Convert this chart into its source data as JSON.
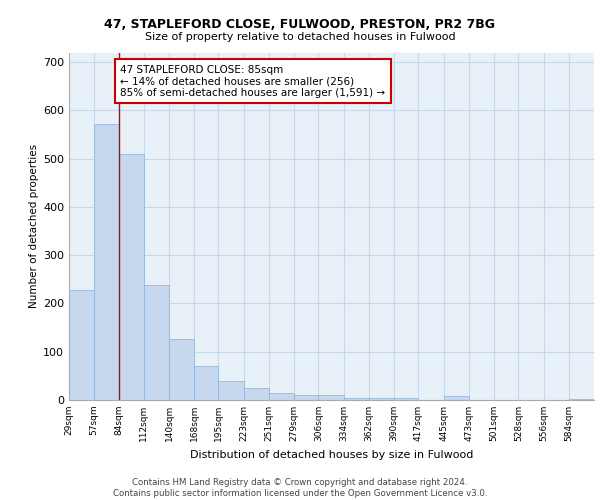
{
  "title1": "47, STAPLEFORD CLOSE, FULWOOD, PRESTON, PR2 7BG",
  "title2": "Size of property relative to detached houses in Fulwood",
  "xlabel": "Distribution of detached houses by size in Fulwood",
  "ylabel": "Number of detached properties",
  "footnote": "Contains HM Land Registry data © Crown copyright and database right 2024.\nContains public sector information licensed under the Open Government Licence v3.0.",
  "bar_color": "#c5d8ee",
  "bar_edge_color": "#8ab0d4",
  "grid_color": "#c8d8e8",
  "background_color": "#e8f0f8",
  "annotation_text": "47 STAPLEFORD CLOSE: 85sqm\n← 14% of detached houses are smaller (256)\n85% of semi-detached houses are larger (1,591) →",
  "annotation_box_color": "#ffffff",
  "annotation_box_edge": "#cc0000",
  "vline_color": "#cc0000",
  "ylim": [
    0,
    720
  ],
  "yticks": [
    0,
    100,
    200,
    300,
    400,
    500,
    600,
    700
  ],
  "bin_edges": [
    29,
    57,
    84,
    112,
    140,
    168,
    195,
    223,
    251,
    279,
    306,
    334,
    362,
    390,
    417,
    445,
    473,
    501,
    528,
    556,
    584
  ],
  "bar_heights": [
    228,
    572,
    510,
    238,
    126,
    70,
    40,
    25,
    14,
    10,
    10,
    5,
    5,
    5,
    0,
    8,
    0,
    0,
    0,
    0,
    2
  ],
  "categories": [
    "29sqm",
    "57sqm",
    "84sqm",
    "112sqm",
    "140sqm",
    "168sqm",
    "195sqm",
    "223sqm",
    "251sqm",
    "279sqm",
    "306sqm",
    "334sqm",
    "362sqm",
    "390sqm",
    "417sqm",
    "445sqm",
    "473sqm",
    "501sqm",
    "528sqm",
    "556sqm",
    "584sqm"
  ],
  "property_line_x": 84
}
